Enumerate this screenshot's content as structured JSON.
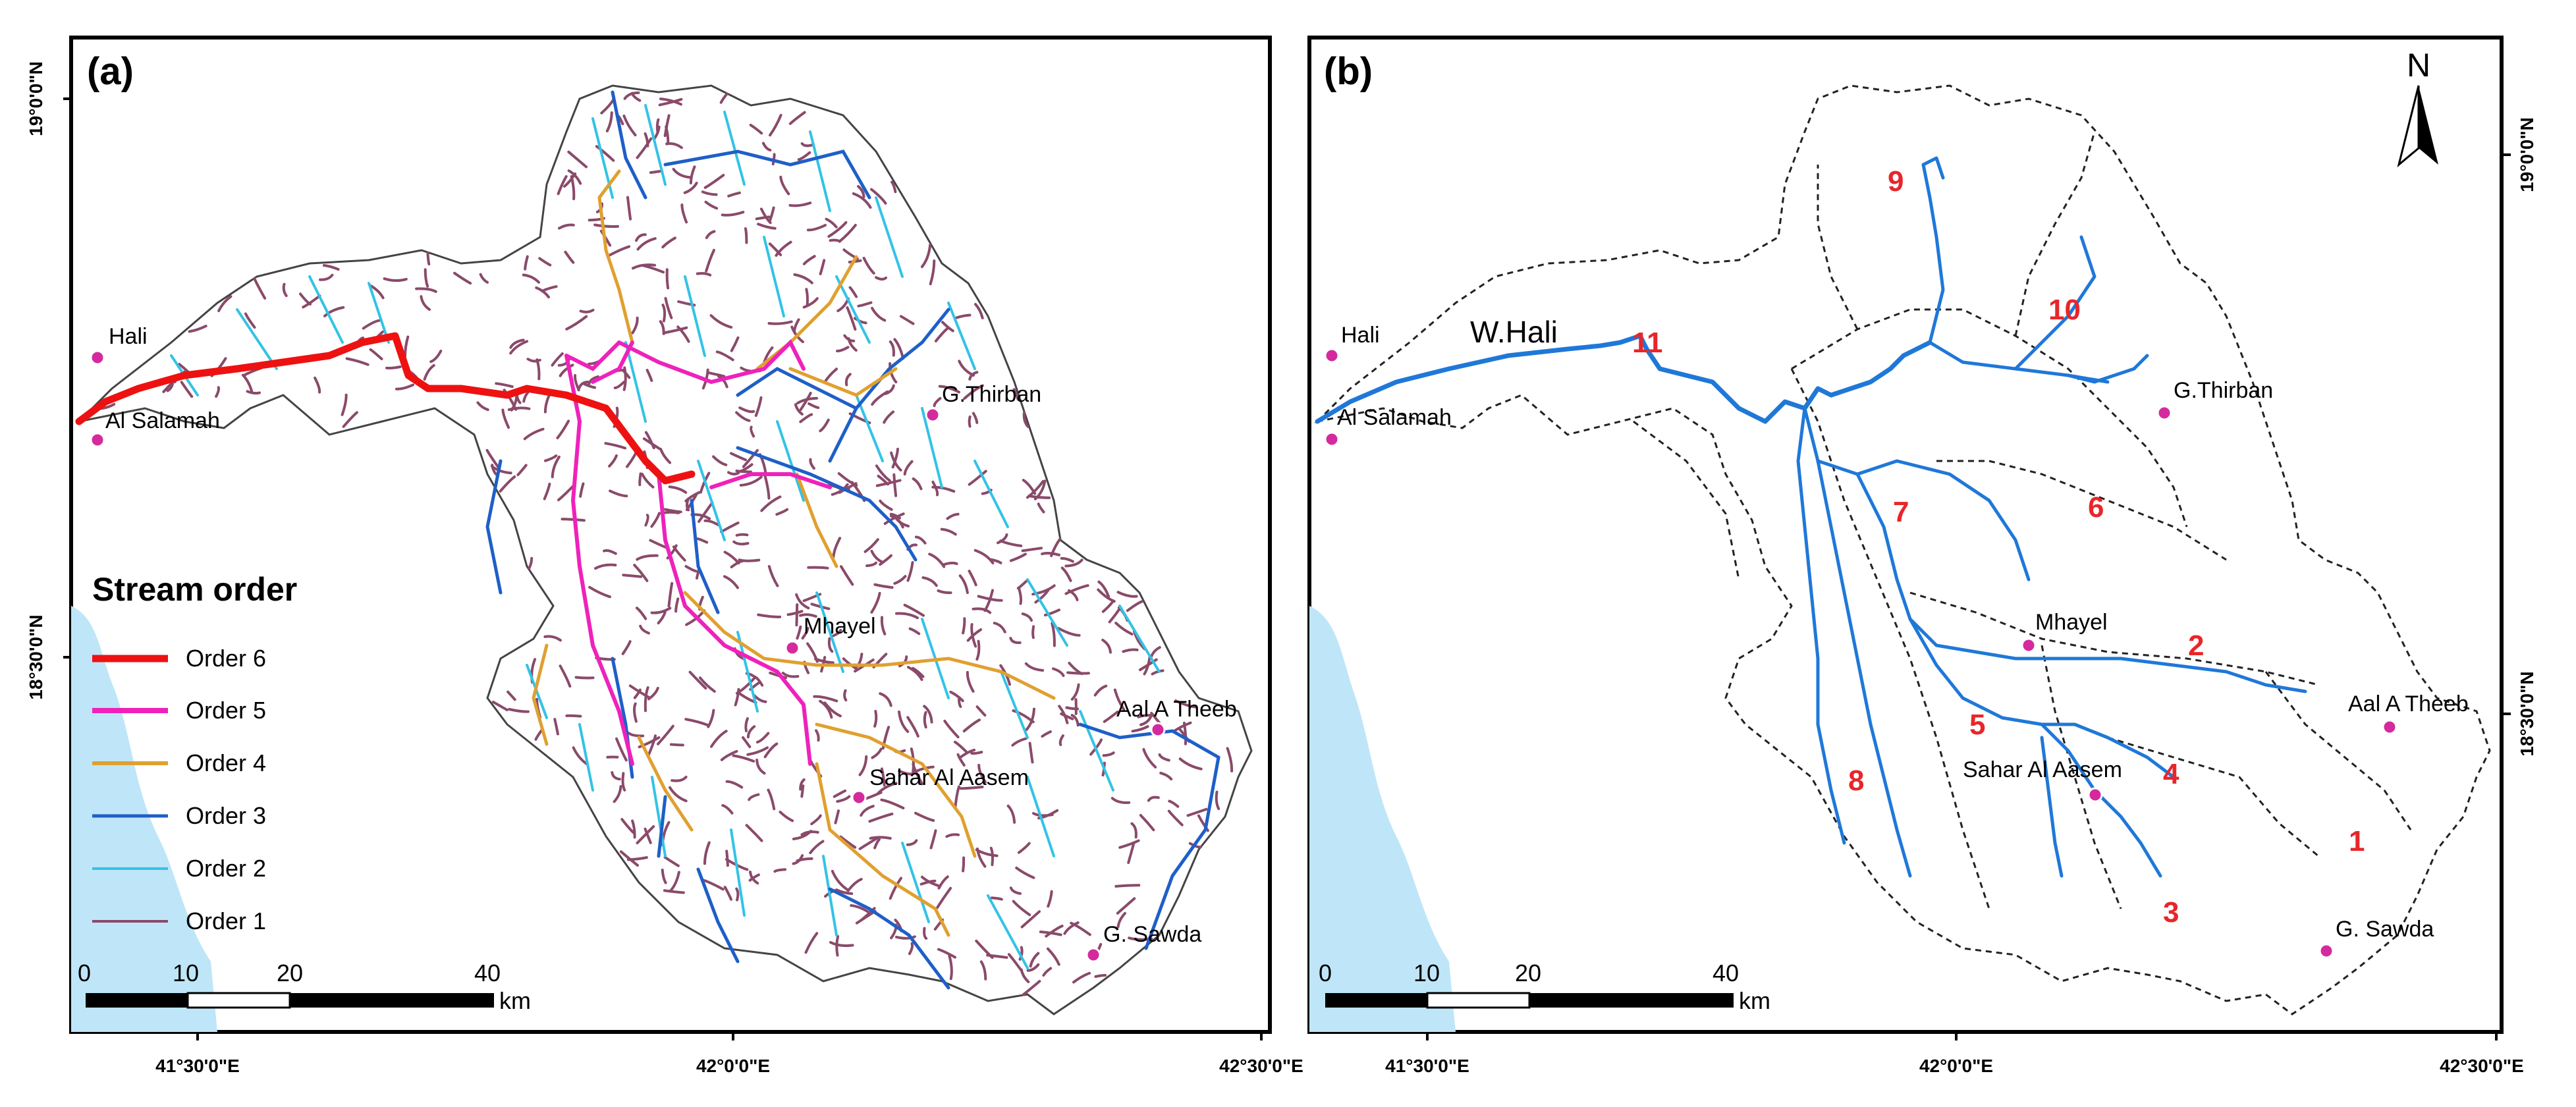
{
  "panels": [
    {
      "id": "a",
      "label": "(a)",
      "lat_ticks": [
        "19°0'0\"N",
        "18°30'0\"N"
      ],
      "lon_ticks": [
        "41°30'0\"E",
        "42°0'0\"E",
        "42°30'0\"E"
      ],
      "towns": [
        "Hali",
        "Al Salamah",
        "G.Thirban",
        "Mhayel",
        "Aal A Theeb",
        "Sahar Al Aasem",
        "G. Sawda"
      ],
      "legend": {
        "title": "Stream order",
        "items": [
          {
            "label": "Order 6",
            "color": "#ee1111"
          },
          {
            "label": "Order 5",
            "color": "#ee22bb"
          },
          {
            "label": "Order 4",
            "color": "#e0a030"
          },
          {
            "label": "Order 3",
            "color": "#1e5fc8"
          },
          {
            "label": "Order 2",
            "color": "#33c3e6"
          },
          {
            "label": "Order 1",
            "color": "#8a4a6a"
          }
        ]
      },
      "scale": {
        "labels": [
          "0",
          "10",
          "20",
          "40"
        ],
        "unit": "km"
      }
    },
    {
      "id": "b",
      "label": "(b)",
      "lat_ticks": [
        "19°0'0\"N",
        "18°30'0\"N"
      ],
      "lon_ticks": [
        "41°30'0\"E",
        "42°0'0\"E",
        "42°30'0\"E"
      ],
      "towns": [
        "Hali",
        "Al Salamah",
        "G.Thirban",
        "Mhayel",
        "Aal A Theeb",
        "Sahar Al Aasem",
        "G. Sawda"
      ],
      "wadi_label": "W.Hali",
      "subbasins": [
        "1",
        "2",
        "3",
        "4",
        "5",
        "6",
        "7",
        "8",
        "9",
        "10",
        "11"
      ],
      "north": "N",
      "scale": {
        "labels": [
          "0",
          "10",
          "20",
          "40"
        ],
        "unit": "km"
      }
    }
  ],
  "colors": {
    "sea": "#bfe6f8",
    "main_channel": "#1f78d8",
    "town": "#d42a9e",
    "subbasin_id": "#e8262a"
  }
}
